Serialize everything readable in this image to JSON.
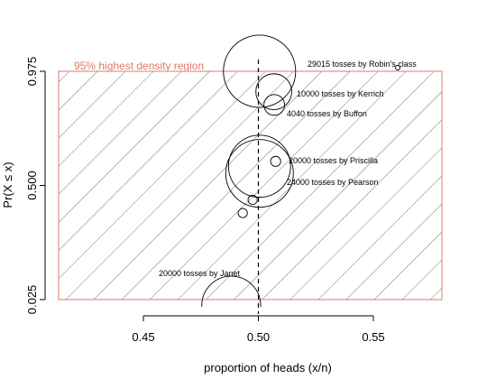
{
  "chart_data": {
    "type": "scatter",
    "xlabel": "proportion of heads (x/n)",
    "ylabel": "Pr(X ≤ x)",
    "xlim": [
      0.4,
      0.58
    ],
    "ylim": [
      0.0,
      1.0
    ],
    "x_ticks": [
      0.45,
      0.5,
      0.55
    ],
    "x_tick_labels": [
      "0.45",
      "0.50",
      "0.55"
    ],
    "y_ticks": [
      0.025,
      0.5,
      0.975
    ],
    "y_tick_labels": [
      "0.025",
      "0.500",
      "0.975"
    ],
    "grid": false,
    "reference_line": {
      "x": 0.5,
      "style": "dashed"
    },
    "region": {
      "label": "95% highest density region",
      "y_range": [
        0.025,
        0.975
      ],
      "color": "#e07868",
      "fill": "diagonal hatching"
    },
    "series": [
      {
        "points": [
          {
            "x": 0.5005,
            "y": 0.975,
            "r": 0.0157,
            "label": "29015 tosses by Robin's class"
          },
          {
            "x": 0.5067,
            "y": 0.89,
            "r": 0.0078,
            "label": "10000 tosses by Kerrich"
          },
          {
            "x": 0.5069,
            "y": 0.835,
            "r": 0.0045,
            "label": "4040 tosses by Buffon"
          },
          {
            "x": 0.5005,
            "y": 0.58,
            "r": 0.0135,
            "label": "20000 tosses by Priscilla"
          },
          {
            "x": 0.5005,
            "y": 0.55,
            "r": 0.0147,
            "label": "24000 tosses by Pearson"
          },
          {
            "x": 0.5075,
            "y": 0.6,
            "r": 0.0022,
            "label": ""
          },
          {
            "x": 0.4975,
            "y": 0.44,
            "r": 0.002,
            "label": ""
          },
          {
            "x": 0.4932,
            "y": 0.385,
            "r": 0.002,
            "label": ""
          },
          {
            "x": 0.4882,
            "y": 0.0,
            "r": 0.0128,
            "label": "20000 tosses by Janet"
          },
          {
            "x": 0.5606,
            "y": 0.99,
            "r": 0.0009,
            "label": ""
          }
        ]
      }
    ]
  }
}
